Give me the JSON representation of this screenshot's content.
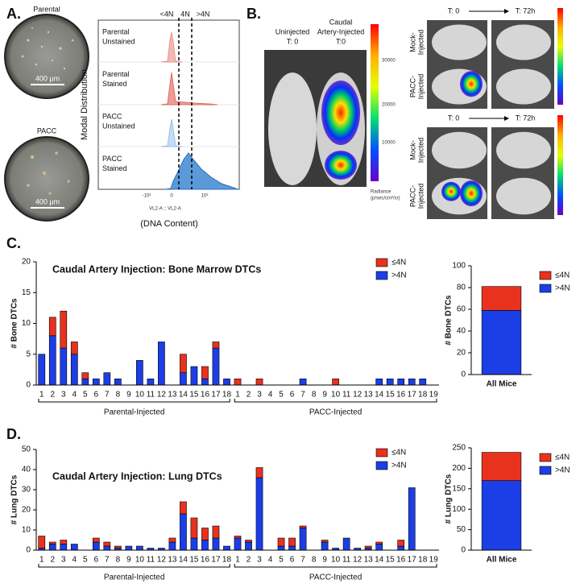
{
  "panel_labels": [
    "A.",
    "B.",
    "C.",
    "D."
  ],
  "panel_a": {
    "micrographs": [
      {
        "title": "Parental",
        "scale": "400 µm"
      },
      {
        "title": "PACC",
        "scale": "400 µm"
      }
    ],
    "gates": [
      "<4N",
      "4N",
      ">4N"
    ],
    "rows": [
      [
        "Parental",
        "Unstained"
      ],
      [
        "Parental",
        "Stained"
      ],
      [
        "PACC",
        "Unstained"
      ],
      [
        "PACC",
        "Stained"
      ]
    ],
    "y_label": "Modal Distribution",
    "x_ticks": [
      "-10³",
      "0",
      "10³"
    ],
    "x_label": "VL2-A :: VL2-A",
    "x_caption": "(DNA Content)"
  },
  "panel_b": {
    "left_labels": [
      [
        "Uninjected",
        "T: 0"
      ],
      [
        "Caudal",
        "Artery-Injected",
        "T:0"
      ]
    ],
    "colorbar_ticks": [
      "30000",
      "20000",
      "10000"
    ],
    "colorbar_label": [
      "Radiance",
      "(p/sec/cm²/sr)"
    ],
    "blocks": [
      {
        "times": [
          "T: 0",
          "T: 72h"
        ],
        "rows": [
          [
            "Mock-",
            "Injected"
          ],
          [
            "PACC-",
            "Injected"
          ]
        ]
      },
      {
        "times": [
          "T: 0",
          "T: 72h"
        ],
        "rows": [
          [
            "Mock-",
            "Injected"
          ],
          [
            "PACC-",
            "Injected"
          ]
        ]
      }
    ]
  },
  "chart_data": [
    {
      "type": "bar",
      "stacked": true,
      "title": "Caudal Artery Injection: Bone Marrow DTCs",
      "y_label": "# Bone DTCs",
      "groups": [
        {
          "name": "Parental-Injected",
          "categories": [
            "1",
            "2",
            "3",
            "4",
            "5",
            "6",
            "7",
            "8",
            "9",
            "10",
            "11",
            "12",
            "13",
            "14",
            "15",
            "16",
            "17",
            "18"
          ]
        },
        {
          "name": "PACC-Injected",
          "categories": [
            "1",
            "2",
            "3",
            "4",
            "5",
            "6",
            "7",
            "8",
            "9",
            "10",
            "11",
            "12",
            "13",
            "14",
            "15",
            "16",
            "17",
            "18",
            "19"
          ]
        }
      ],
      "series": [
        {
          "name": "≤4N",
          "color": "#e8321e",
          "values": [
            [
              0,
              3,
              6,
              2,
              1,
              0,
              0,
              0,
              0,
              0,
              0,
              0,
              0,
              3,
              0,
              2,
              1,
              0
            ],
            [
              1,
              0,
              1,
              0,
              0,
              0,
              0,
              0,
              0,
              1,
              0,
              0,
              0,
              0,
              0,
              0,
              0,
              0,
              0
            ]
          ]
        },
        {
          "name": ">4N",
          "color": "#1c3ee6",
          "values": [
            [
              5,
              8,
              6,
              5,
              1,
              1,
              2,
              1,
              0,
              4,
              1,
              7,
              0,
              2,
              3,
              1,
              6,
              1
            ],
            [
              0,
              0,
              0,
              0,
              0,
              0,
              1,
              0,
              0,
              0,
              0,
              0,
              0,
              1,
              1,
              1,
              1,
              1,
              0
            ]
          ]
        }
      ],
      "ylim": [
        0,
        20
      ],
      "yticks": [
        0,
        5,
        10,
        15,
        20
      ]
    },
    {
      "type": "bar",
      "stacked": true,
      "y_label": "# Bone DTCs",
      "categories": [
        "All Mice"
      ],
      "series": [
        {
          "name": "≤4N",
          "color": "#e8321e",
          "values": [
            22
          ]
        },
        {
          "name": ">4N",
          "color": "#1c3ee6",
          "values": [
            59
          ]
        }
      ],
      "ylim": [
        0,
        100
      ],
      "yticks": [
        0,
        20,
        40,
        60,
        80,
        100
      ]
    },
    {
      "type": "bar",
      "stacked": true,
      "title": "Caudal Artery Injection: Lung DTCs",
      "y_label": "# Lung DTCs",
      "groups": [
        {
          "name": "Parental-Injected",
          "categories": [
            "1",
            "2",
            "3",
            "4",
            "5",
            "6",
            "7",
            "8",
            "9",
            "10",
            "11",
            "12",
            "13",
            "14",
            "15",
            "16",
            "17",
            "18"
          ]
        },
        {
          "name": "PACC-Injected",
          "categories": [
            "1",
            "2",
            "3",
            "4",
            "5",
            "6",
            "7",
            "8",
            "9",
            "10",
            "11",
            "12",
            "13",
            "14",
            "15",
            "16",
            "17",
            "18",
            "19"
          ]
        }
      ],
      "series": [
        {
          "name": "≤4N",
          "color": "#e8321e",
          "values": [
            [
              6,
              1,
              2,
              0,
              0,
              2,
              2,
              1,
              0,
              0,
              0,
              0,
              2,
              6,
              10,
              6,
              6,
              0
            ],
            [
              1,
              1,
              5,
              0,
              4,
              4,
              1,
              0,
              1,
              0,
              0,
              0,
              1,
              1,
              0,
              3,
              0,
              0,
              0
            ]
          ]
        },
        {
          "name": ">4N",
          "color": "#1c3ee6",
          "values": [
            [
              1,
              3,
              3,
              3,
              0,
              4,
              2,
              1,
              2,
              2,
              1,
              1,
              4,
              18,
              6,
              5,
              6,
              2
            ],
            [
              6,
              4,
              36,
              0,
              2,
              2,
              11,
              0,
              4,
              1,
              6,
              1,
              1,
              3,
              0,
              2,
              31,
              0,
              0
            ]
          ]
        }
      ],
      "ylim": [
        0,
        50
      ],
      "yticks": [
        0,
        10,
        20,
        30,
        40,
        50
      ]
    },
    {
      "type": "bar",
      "stacked": true,
      "y_label": "# Lung DTCs",
      "categories": [
        "All Mice"
      ],
      "series": [
        {
          "name": "≤4N",
          "color": "#e8321e",
          "values": [
            69
          ]
        },
        {
          "name": ">4N",
          "color": "#1c3ee6",
          "values": [
            170
          ]
        }
      ],
      "ylim": [
        0,
        250
      ],
      "yticks": [
        0,
        50,
        100,
        150,
        200,
        250
      ]
    }
  ]
}
